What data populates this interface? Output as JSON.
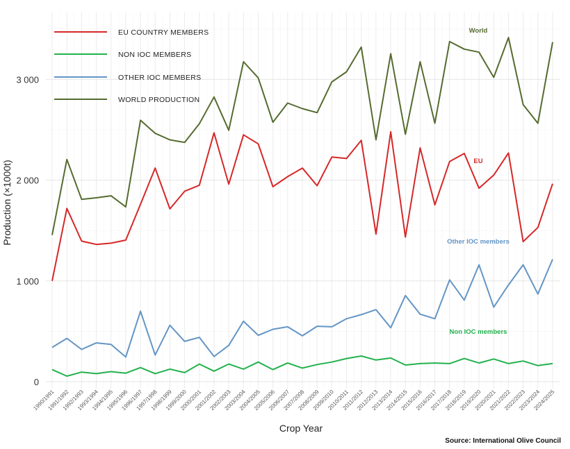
{
  "chart_data": {
    "type": "line",
    "title": "",
    "xlabel": "Crop Year",
    "ylabel": "Production (×1000t)",
    "ylim": [
      0,
      3650
    ],
    "yticks": [
      0,
      1000,
      2000,
      3000
    ],
    "ytick_labels": [
      "0",
      "1 000",
      "2 000",
      "3 000"
    ],
    "grid": true,
    "legend_position": "top-left",
    "source": "Source: International Olive Council",
    "categories": [
      "1990/1991",
      "1991/1992",
      "1992/1993",
      "1993/1994",
      "1994/1995",
      "1995/1996",
      "1996/1997",
      "1997/1998",
      "1998/1999",
      "1999/2000",
      "2000/2001",
      "2001/2002",
      "2002/2003",
      "2003/2004",
      "2004/2005",
      "2005/2006",
      "2006/2007",
      "2007/2008",
      "2008/2009",
      "2009/2010",
      "2010/2011",
      "2011/2012",
      "2012/2013",
      "2013/2014",
      "2014/2015",
      "2015/2016",
      "2016/2017",
      "2017/2018",
      "2018/2019",
      "2019/2020",
      "2020/2021",
      "2021/2022",
      "2022/2023",
      "2023/2024",
      "2024/2025"
    ],
    "series": [
      {
        "name": "EU COUNTRY MEMBERS",
        "color": "#d62728",
        "annotation": "EU",
        "annotation_index": 29,
        "values": [
          1000,
          1720,
          1395,
          1362,
          1375,
          1405,
          1760,
          2120,
          1715,
          1890,
          1950,
          2470,
          1960,
          2450,
          2360,
          1935,
          2035,
          2120,
          1945,
          2230,
          2215,
          2395,
          1465,
          2480,
          1435,
          2320,
          1755,
          2185,
          2265,
          1920,
          2050,
          2270,
          1390,
          1530,
          1965
        ]
      },
      {
        "name": "NON IOC MEMBERS",
        "color": "#22b14c",
        "annotation": "Non IOC members",
        "annotation_index": 30,
        "values": [
          120,
          55,
          95,
          80,
          100,
          85,
          140,
          80,
          125,
          90,
          175,
          105,
          175,
          125,
          195,
          120,
          185,
          135,
          170,
          195,
          230,
          255,
          215,
          235,
          165,
          180,
          185,
          180,
          230,
          185,
          225,
          180,
          205,
          160,
          180
        ]
      },
      {
        "name": "OTHER IOC MEMBERS",
        "color": "#6395c5",
        "annotation": "Other IOC members",
        "annotation_index": 29,
        "values": [
          340,
          430,
          320,
          385,
          370,
          245,
          700,
          265,
          560,
          400,
          440,
          250,
          360,
          600,
          460,
          520,
          545,
          455,
          550,
          545,
          625,
          665,
          715,
          535,
          855,
          670,
          625,
          1010,
          810,
          1160,
          740,
          960,
          1160,
          870,
          1215
        ]
      },
      {
        "name": "WORLD PRODUCTION",
        "color": "#556b2f",
        "annotation": "World",
        "annotation_index": 29,
        "values": [
          1455,
          2205,
          1810,
          1825,
          1845,
          1735,
          2595,
          2465,
          2400,
          2375,
          2560,
          2825,
          2495,
          3175,
          3015,
          2575,
          2765,
          2710,
          2670,
          2975,
          3075,
          3320,
          2400,
          3255,
          2455,
          3175,
          2565,
          3375,
          3300,
          3270,
          3020,
          3415,
          2750,
          2565,
          3370
        ]
      }
    ]
  }
}
